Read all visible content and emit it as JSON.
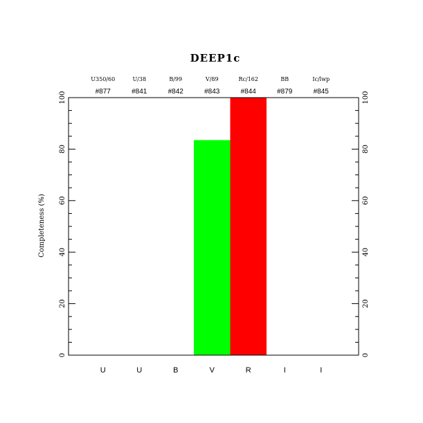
{
  "chart_data": {
    "type": "bar",
    "title": "DEEP1c",
    "xlabel": "",
    "ylabel": "Completeness (%)",
    "ylim": [
      0,
      100
    ],
    "yticks": [
      0,
      20,
      40,
      60,
      80,
      100
    ],
    "categories": [
      "U",
      "U",
      "B",
      "V",
      "R",
      "I",
      "I"
    ],
    "filters": [
      "U350/60",
      "U/38",
      "B/99",
      "V/89",
      "Rc/162",
      "BB",
      "Ic/lwp"
    ],
    "ids": [
      "#877",
      "#841",
      "#842",
      "#843",
      "#844",
      "#879",
      "#845"
    ],
    "values": [
      0,
      0,
      0,
      83.5,
      100,
      0,
      0
    ],
    "colors": [
      "#0000ff",
      "#0000ff",
      "#0000ff",
      "#00ff00",
      "#ff0000",
      "#ff0000",
      "#ff0000"
    ],
    "grid": false,
    "legend": "none"
  }
}
